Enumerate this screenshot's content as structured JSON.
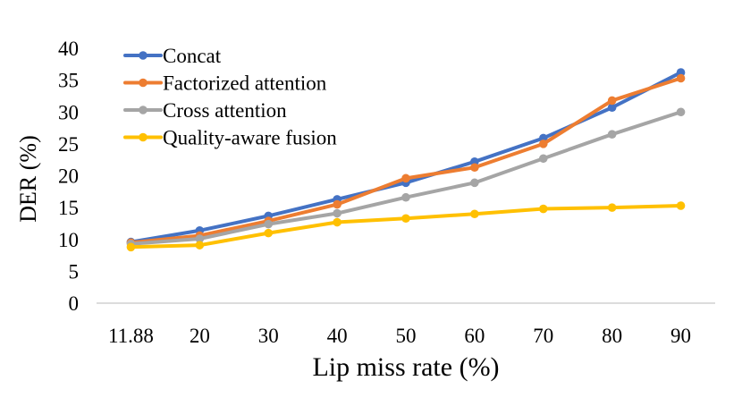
{
  "chart_data": {
    "type": "line",
    "title": "",
    "xlabel": "Lip miss rate (%)",
    "ylabel": "DER (%)",
    "categories": [
      "11.88",
      "20",
      "30",
      "40",
      "50",
      "60",
      "70",
      "80",
      "90"
    ],
    "ylim": [
      0,
      40
    ],
    "yticks": [
      0,
      5,
      10,
      15,
      20,
      25,
      30,
      35,
      40
    ],
    "grid": false,
    "legend": "top-left",
    "series": [
      {
        "name": "Concat",
        "color": "#4472C4",
        "values": [
          9.6,
          11.4,
          13.7,
          16.3,
          18.9,
          22.2,
          25.9,
          30.7,
          36.2
        ]
      },
      {
        "name": "Factorized attention",
        "color": "#ED7D31",
        "values": [
          9.5,
          10.6,
          12.9,
          15.5,
          19.6,
          21.3,
          25.0,
          31.8,
          35.3
        ]
      },
      {
        "name": "Cross attention",
        "color": "#A5A5A5",
        "values": [
          9.3,
          10.1,
          12.4,
          14.1,
          16.6,
          18.9,
          22.7,
          26.5,
          30.0
        ]
      },
      {
        "name": "Quality-aware fusion",
        "color": "#FFC000",
        "values": [
          8.8,
          9.1,
          11.0,
          12.7,
          13.3,
          14.0,
          14.8,
          15.0,
          15.3
        ]
      }
    ]
  }
}
